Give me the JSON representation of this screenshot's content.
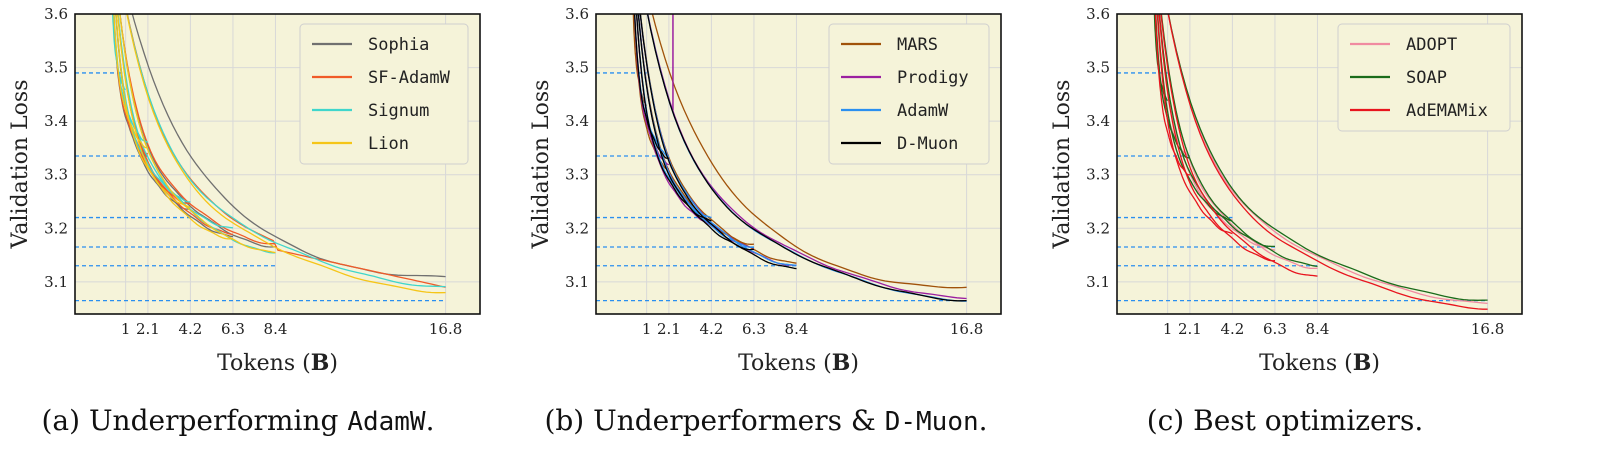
{
  "chart_data": [
    {
      "type": "line",
      "ylabel": "Validation Loss",
      "xlabel_prefix": "Tokens (",
      "xlabel_bold": "B",
      "xlabel_suffix": ")",
      "caption_prefix": "(a) Underperforming ",
      "caption_mono": "AdamW",
      "caption_suffix": ".",
      "xlim": [
        -1.5,
        18.5
      ],
      "ylim": [
        3.04,
        3.6
      ],
      "xticks": [
        1,
        2.1,
        4.2,
        6.3,
        8.4,
        16.8
      ],
      "xtick_labels": [
        "1",
        "2.1",
        "4.2",
        "6.3",
        "8.4",
        "16.8"
      ],
      "yticks": [
        3.1,
        3.2,
        3.3,
        3.4,
        3.5,
        3.6
      ],
      "ytick_labels": [
        "3.1",
        "3.2",
        "3.3",
        "3.4",
        "3.5",
        "3.6"
      ],
      "grid": true,
      "legend_position": "top-right",
      "reference_lines": [
        {
          "y": 3.49,
          "x_end": 1.0
        },
        {
          "y": 3.335,
          "x_end": 2.1
        },
        {
          "y": 3.22,
          "x_end": 4.2
        },
        {
          "y": 3.165,
          "x_end": 6.3
        },
        {
          "y": 3.13,
          "x_end": 8.4
        },
        {
          "y": 3.065,
          "x_end": 16.8
        }
      ],
      "series": [
        {
          "name": "Sophia",
          "color": "#707070",
          "runs": [
            {
              "end": 2.1,
              "final": 3.335
            },
            {
              "end": 4.2,
              "final": 3.235
            },
            {
              "end": 6.3,
              "final": 3.185
            },
            {
              "end": 8.4,
              "final": 3.165
            },
            {
              "end": 16.8,
              "final": 3.11,
              "slow": true
            }
          ]
        },
        {
          "name": "SF-AdamW",
          "color": "#f05a28",
          "runs": [
            {
              "end": 2.1,
              "final": 3.34
            },
            {
              "end": 4.2,
              "final": 3.245
            },
            {
              "end": 6.3,
              "final": 3.19
            },
            {
              "end": 8.4,
              "final": 3.17
            },
            {
              "end": 16.8,
              "final": 3.09,
              "linear_tail": [
                8.4,
                3.16
              ]
            }
          ]
        },
        {
          "name": "Signum",
          "color": "#3fd6cc",
          "runs": [
            {
              "end": 1.0,
              "final": 3.46
            },
            {
              "end": 2.1,
              "final": 3.36
            },
            {
              "end": 4.2,
              "final": 3.25
            },
            {
              "end": 6.3,
              "final": 3.2
            },
            {
              "end": 8.4,
              "final": 3.155
            },
            {
              "end": 16.8,
              "final": 3.09
            }
          ]
        },
        {
          "name": "Lion",
          "color": "#f5c518",
          "runs": [
            {
              "end": 2.1,
              "final": 3.35
            },
            {
              "end": 4.2,
              "final": 3.24
            },
            {
              "end": 6.3,
              "final": 3.18
            },
            {
              "end": 8.4,
              "final": 3.155
            },
            {
              "end": 16.8,
              "final": 3.08
            }
          ]
        }
      ]
    },
    {
      "type": "line",
      "ylabel": "Validation Loss",
      "xlabel_prefix": "Tokens (",
      "xlabel_bold": "B",
      "xlabel_suffix": ")",
      "caption_prefix": "(b) Underperformers & ",
      "caption_mono": "D-Muon",
      "caption_suffix": ".",
      "xlim": [
        -1.5,
        18.5
      ],
      "ylim": [
        3.04,
        3.6
      ],
      "xticks": [
        1,
        2.1,
        4.2,
        6.3,
        8.4,
        16.8
      ],
      "xtick_labels": [
        "1",
        "2.1",
        "4.2",
        "6.3",
        "8.4",
        "16.8"
      ],
      "yticks": [
        3.1,
        3.2,
        3.3,
        3.4,
        3.5,
        3.6
      ],
      "ytick_labels": [
        "3.1",
        "3.2",
        "3.3",
        "3.4",
        "3.5",
        "3.6"
      ],
      "grid": true,
      "legend_position": "top-right",
      "reference_lines": [
        {
          "y": 3.49,
          "x_end": 1.0
        },
        {
          "y": 3.335,
          "x_end": 2.1
        },
        {
          "y": 3.22,
          "x_end": 4.2
        },
        {
          "y": 3.165,
          "x_end": 6.3
        },
        {
          "y": 3.13,
          "x_end": 8.4
        },
        {
          "y": 3.065,
          "x_end": 16.8
        }
      ],
      "series": [
        {
          "name": "MARS",
          "color": "#a0520a",
          "runs": [
            {
              "end": 1.0,
              "final": 3.43
            },
            {
              "end": 2.1,
              "final": 3.31
            },
            {
              "end": 4.2,
              "final": 3.215
            },
            {
              "end": 6.3,
              "final": 3.17
            },
            {
              "end": 8.4,
              "final": 3.135
            },
            {
              "end": 16.8,
              "final": 3.09,
              "slow": true
            }
          ]
        },
        {
          "name": "Prodigy",
          "color": "#9b1fa0",
          "runs": [
            {
              "end": 2.1,
              "final": 3.32,
              "spike": true
            },
            {
              "end": 4.2,
              "final": 3.21
            },
            {
              "end": 6.3,
              "final": 3.165
            },
            {
              "end": 8.4,
              "final": 3.13
            },
            {
              "end": 16.8,
              "final": 3.07
            }
          ]
        },
        {
          "name": "AdamW",
          "color": "#2a8ff0",
          "runs": [
            {
              "end": 2.1,
              "final": 3.335
            },
            {
              "end": 4.2,
              "final": 3.22
            },
            {
              "end": 6.3,
              "final": 3.165
            },
            {
              "end": 8.4,
              "final": 3.13
            },
            {
              "end": 16.8,
              "final": 3.065
            }
          ]
        },
        {
          "name": "D-Muon",
          "color": "#000000",
          "runs": [
            {
              "end": 2.1,
              "final": 3.33
            },
            {
              "end": 4.2,
              "final": 3.215
            },
            {
              "end": 6.3,
              "final": 3.16
            },
            {
              "end": 8.4,
              "final": 3.125
            },
            {
              "end": 16.8,
              "final": 3.065
            }
          ]
        }
      ]
    },
    {
      "type": "line",
      "ylabel": "Validation Loss",
      "xlabel_prefix": "Tokens (",
      "xlabel_bold": "B",
      "xlabel_suffix": ")",
      "caption_prefix": "(c) Best optimizers.",
      "caption_mono": "",
      "caption_suffix": "",
      "xlim": [
        -1.5,
        18.5
      ],
      "ylim": [
        3.04,
        3.6
      ],
      "xticks": [
        1,
        2.1,
        4.2,
        6.3,
        8.4,
        16.8
      ],
      "xtick_labels": [
        "1",
        "2.1",
        "4.2",
        "6.3",
        "8.4",
        "16.8"
      ],
      "yticks": [
        3.1,
        3.2,
        3.3,
        3.4,
        3.5,
        3.6
      ],
      "ytick_labels": [
        "3.1",
        "3.2",
        "3.3",
        "3.4",
        "3.5",
        "3.6"
      ],
      "grid": true,
      "legend_position": "top-right",
      "reference_lines": [
        {
          "y": 3.49,
          "x_end": 1.0
        },
        {
          "y": 3.335,
          "x_end": 2.1
        },
        {
          "y": 3.22,
          "x_end": 4.2
        },
        {
          "y": 3.165,
          "x_end": 6.3
        },
        {
          "y": 3.13,
          "x_end": 8.4
        },
        {
          "y": 3.065,
          "x_end": 16.8
        }
      ],
      "series": [
        {
          "name": "ADOPT",
          "color": "#f08aa0",
          "runs": [
            {
              "end": 2.1,
              "final": 3.335
            },
            {
              "end": 4.2,
              "final": 3.215
            },
            {
              "end": 6.3,
              "final": 3.16
            },
            {
              "end": 8.4,
              "final": 3.125
            },
            {
              "end": 16.8,
              "final": 3.06
            }
          ]
        },
        {
          "name": "SOAP",
          "color": "#1a6b1a",
          "runs": [
            {
              "end": 1.0,
              "final": 3.44
            },
            {
              "end": 2.1,
              "final": 3.33
            },
            {
              "end": 4.2,
              "final": 3.215
            },
            {
              "end": 6.3,
              "final": 3.165
            },
            {
              "end": 8.4,
              "final": 3.13
            },
            {
              "end": 16.8,
              "final": 3.065
            }
          ]
        },
        {
          "name": "AdEMAMix",
          "color": "#e8141e",
          "runs": [
            {
              "end": 2.1,
              "final": 3.3
            },
            {
              "end": 4.2,
              "final": 3.19
            },
            {
              "end": 6.3,
              "final": 3.14
            },
            {
              "end": 8.4,
              "final": 3.11
            },
            {
              "end": 16.8,
              "final": 3.05
            }
          ]
        }
      ]
    }
  ]
}
